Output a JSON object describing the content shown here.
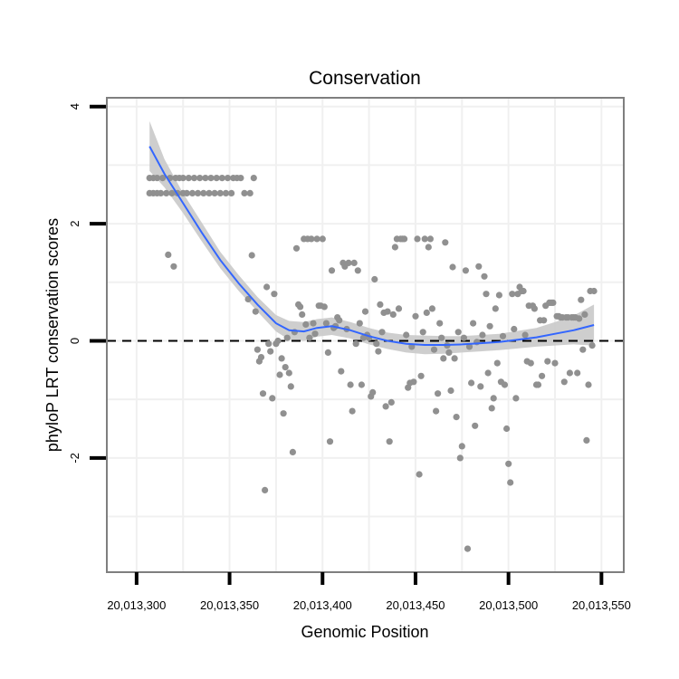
{
  "chart_data": {
    "type": "scatter",
    "title": "Conservation",
    "xlabel": "Genomic Position",
    "ylabel": "phyloP LRT conservation scores",
    "xlim": [
      20013284,
      20013562
    ],
    "ylim": [
      -3.95,
      4.15
    ],
    "xticks": [
      20013300,
      20013350,
      20013400,
      20013450,
      20013500,
      20013550
    ],
    "xtick_labels": [
      "20,013,300",
      "20,013,350",
      "20,013,400",
      "20,013,450",
      "20,013,500",
      "20,013,550"
    ],
    "yticks": [
      -2,
      0,
      2,
      4
    ],
    "ytick_labels": [
      "-2",
      "0",
      "2",
      "4"
    ],
    "grid": true,
    "reference_line": {
      "y": 0,
      "style": "dashed"
    },
    "colors": {
      "points": "#909090",
      "smooth": "#3366ff",
      "ribbon": "#c9c9c9",
      "panel_border": "#7f7f7f",
      "grid": "#f0f0f0",
      "axis": "#000000"
    },
    "points": [
      {
        "x": 20013307,
        "y": 2.78
      },
      {
        "x": 20013307,
        "y": 2.52
      },
      {
        "x": 20013309,
        "y": 2.78
      },
      {
        "x": 20013309,
        "y": 2.52
      },
      {
        "x": 20013311,
        "y": 2.78
      },
      {
        "x": 20013311,
        "y": 2.52
      },
      {
        "x": 20013313,
        "y": 2.52
      },
      {
        "x": 20013314,
        "y": 2.78
      },
      {
        "x": 20013316,
        "y": 2.52
      },
      {
        "x": 20013317,
        "y": 1.47
      },
      {
        "x": 20013318,
        "y": 2.78
      },
      {
        "x": 20013319,
        "y": 2.52
      },
      {
        "x": 20013320,
        "y": 1.27
      },
      {
        "x": 20013321,
        "y": 2.78
      },
      {
        "x": 20013322,
        "y": 2.52
      },
      {
        "x": 20013323,
        "y": 2.78
      },
      {
        "x": 20013325,
        "y": 2.78
      },
      {
        "x": 20013325,
        "y": 2.52
      },
      {
        "x": 20013327,
        "y": 2.52
      },
      {
        "x": 20013328,
        "y": 2.78
      },
      {
        "x": 20013330,
        "y": 2.52
      },
      {
        "x": 20013331,
        "y": 2.78
      },
      {
        "x": 20013333,
        "y": 2.52
      },
      {
        "x": 20013334,
        "y": 2.78
      },
      {
        "x": 20013336,
        "y": 2.52
      },
      {
        "x": 20013337,
        "y": 2.78
      },
      {
        "x": 20013339,
        "y": 2.52
      },
      {
        "x": 20013340,
        "y": 2.78
      },
      {
        "x": 20013342,
        "y": 2.52
      },
      {
        "x": 20013343,
        "y": 2.78
      },
      {
        "x": 20013345,
        "y": 2.52
      },
      {
        "x": 20013346,
        "y": 2.78
      },
      {
        "x": 20013348,
        "y": 2.52
      },
      {
        "x": 20013349,
        "y": 2.78
      },
      {
        "x": 20013351,
        "y": 2.52
      },
      {
        "x": 20013352,
        "y": 2.78
      },
      {
        "x": 20013354,
        "y": 2.78
      },
      {
        "x": 20013356,
        "y": 2.78
      },
      {
        "x": 20013358,
        "y": 2.52
      },
      {
        "x": 20013360,
        "y": 0.71
      },
      {
        "x": 20013361,
        "y": 2.52
      },
      {
        "x": 20013362,
        "y": 1.46
      },
      {
        "x": 20013363,
        "y": 2.78
      },
      {
        "x": 20013364,
        "y": 0.5
      },
      {
        "x": 20013365,
        "y": -0.15
      },
      {
        "x": 20013366,
        "y": -0.35
      },
      {
        "x": 20013367,
        "y": -0.28
      },
      {
        "x": 20013368,
        "y": -0.9
      },
      {
        "x": 20013369,
        "y": -2.55
      },
      {
        "x": 20013370,
        "y": 0.92
      },
      {
        "x": 20013371,
        "y": -0.05
      },
      {
        "x": 20013372,
        "y": -0.18
      },
      {
        "x": 20013373,
        "y": -0.98
      },
      {
        "x": 20013374,
        "y": 0.8
      },
      {
        "x": 20013375,
        "y": -0.05
      },
      {
        "x": 20013376,
        "y": 0.0
      },
      {
        "x": 20013377,
        "y": -0.58
      },
      {
        "x": 20013378,
        "y": -0.3
      },
      {
        "x": 20013379,
        "y": -1.24
      },
      {
        "x": 20013380,
        "y": -0.45
      },
      {
        "x": 20013381,
        "y": 0.05
      },
      {
        "x": 20013382,
        "y": -0.55
      },
      {
        "x": 20013383,
        "y": -0.78
      },
      {
        "x": 20013384,
        "y": -1.9
      },
      {
        "x": 20013385,
        "y": 0.15
      },
      {
        "x": 20013386,
        "y": 1.58
      },
      {
        "x": 20013387,
        "y": 0.62
      },
      {
        "x": 20013388,
        "y": 0.58
      },
      {
        "x": 20013389,
        "y": 0.45
      },
      {
        "x": 20013390,
        "y": 1.74
      },
      {
        "x": 20013391,
        "y": 0.28
      },
      {
        "x": 20013392,
        "y": 1.74
      },
      {
        "x": 20013393,
        "y": 0.05
      },
      {
        "x": 20013394,
        "y": 1.74
      },
      {
        "x": 20013395,
        "y": 0.3
      },
      {
        "x": 20013396,
        "y": 0.12
      },
      {
        "x": 20013397,
        "y": 1.74
      },
      {
        "x": 20013398,
        "y": 0.6
      },
      {
        "x": 20013399,
        "y": 0.6
      },
      {
        "x": 20013400,
        "y": 1.74
      },
      {
        "x": 20013401,
        "y": 0.58
      },
      {
        "x": 20013402,
        "y": 0.3
      },
      {
        "x": 20013403,
        "y": -0.2
      },
      {
        "x": 20013404,
        "y": -1.72
      },
      {
        "x": 20013405,
        "y": 1.2
      },
      {
        "x": 20013406,
        "y": 0.22
      },
      {
        "x": 20013407,
        "y": 0.25
      },
      {
        "x": 20013408,
        "y": 0.4
      },
      {
        "x": 20013409,
        "y": 0.35
      },
      {
        "x": 20013410,
        "y": -0.52
      },
      {
        "x": 20013411,
        "y": 1.33
      },
      {
        "x": 20013412,
        "y": 1.27
      },
      {
        "x": 20013413,
        "y": 0.2
      },
      {
        "x": 20013414,
        "y": 1.33
      },
      {
        "x": 20013415,
        "y": -0.75
      },
      {
        "x": 20013416,
        "y": -1.2
      },
      {
        "x": 20013417,
        "y": 1.33
      },
      {
        "x": 20013418,
        "y": -0.05
      },
      {
        "x": 20013419,
        "y": 1.2
      },
      {
        "x": 20013420,
        "y": 0.3
      },
      {
        "x": 20013421,
        "y": -0.75
      },
      {
        "x": 20013422,
        "y": 0.05
      },
      {
        "x": 20013423,
        "y": 0.5
      },
      {
        "x": 20013424,
        "y": 0.1
      },
      {
        "x": 20013425,
        "y": 0.05
      },
      {
        "x": 20013426,
        "y": -0.95
      },
      {
        "x": 20013427,
        "y": -0.88
      },
      {
        "x": 20013428,
        "y": 1.05
      },
      {
        "x": 20013429,
        "y": -0.05
      },
      {
        "x": 20013430,
        "y": -0.18
      },
      {
        "x": 20013431,
        "y": 0.62
      },
      {
        "x": 20013432,
        "y": 0.15
      },
      {
        "x": 20013433,
        "y": 0.48
      },
      {
        "x": 20013434,
        "y": -1.12
      },
      {
        "x": 20013435,
        "y": 0.5
      },
      {
        "x": 20013436,
        "y": -1.72
      },
      {
        "x": 20013437,
        "y": -1.05
      },
      {
        "x": 20013438,
        "y": 0.45
      },
      {
        "x": 20013439,
        "y": 1.6
      },
      {
        "x": 20013440,
        "y": 1.74
      },
      {
        "x": 20013441,
        "y": 0.55
      },
      {
        "x": 20013442,
        "y": 1.74
      },
      {
        "x": 20013443,
        "y": 1.74
      },
      {
        "x": 20013444,
        "y": 1.74
      },
      {
        "x": 20013445,
        "y": 0.1
      },
      {
        "x": 20013446,
        "y": -0.8
      },
      {
        "x": 20013447,
        "y": -0.72
      },
      {
        "x": 20013448,
        "y": -0.1
      },
      {
        "x": 20013449,
        "y": -0.7
      },
      {
        "x": 20013450,
        "y": 0.42
      },
      {
        "x": 20013451,
        "y": 1.74
      },
      {
        "x": 20013452,
        "y": -2.28
      },
      {
        "x": 20013453,
        "y": -0.6
      },
      {
        "x": 20013454,
        "y": 0.15
      },
      {
        "x": 20013455,
        "y": 1.74
      },
      {
        "x": 20013456,
        "y": 0.48
      },
      {
        "x": 20013457,
        "y": 1.6
      },
      {
        "x": 20013458,
        "y": 1.74
      },
      {
        "x": 20013459,
        "y": 0.55
      },
      {
        "x": 20013460,
        "y": -0.15
      },
      {
        "x": 20013461,
        "y": -1.2
      },
      {
        "x": 20013462,
        "y": -0.9
      },
      {
        "x": 20013463,
        "y": 0.3
      },
      {
        "x": 20013464,
        "y": 0.05
      },
      {
        "x": 20013465,
        "y": -0.3
      },
      {
        "x": 20013466,
        "y": 1.68
      },
      {
        "x": 20013467,
        "y": -0.08
      },
      {
        "x": 20013468,
        "y": -0.2
      },
      {
        "x": 20013469,
        "y": -0.85
      },
      {
        "x": 20013470,
        "y": 1.26
      },
      {
        "x": 20013471,
        "y": -0.3
      },
      {
        "x": 20013472,
        "y": -1.3
      },
      {
        "x": 20013473,
        "y": 0.15
      },
      {
        "x": 20013474,
        "y": -2.0
      },
      {
        "x": 20013475,
        "y": -1.8
      },
      {
        "x": 20013476,
        "y": 0.05
      },
      {
        "x": 20013477,
        "y": 1.2
      },
      {
        "x": 20013478,
        "y": -3.55
      },
      {
        "x": 20013479,
        "y": -0.1
      },
      {
        "x": 20013480,
        "y": -0.72
      },
      {
        "x": 20013481,
        "y": 0.3
      },
      {
        "x": 20013482,
        "y": -1.45
      },
      {
        "x": 20013483,
        "y": -0.02
      },
      {
        "x": 20013484,
        "y": 1.27
      },
      {
        "x": 20013485,
        "y": -0.78
      },
      {
        "x": 20013486,
        "y": 0.1
      },
      {
        "x": 20013487,
        "y": 1.1
      },
      {
        "x": 20013488,
        "y": 0.8
      },
      {
        "x": 20013489,
        "y": -0.55
      },
      {
        "x": 20013490,
        "y": 0.25
      },
      {
        "x": 20013491,
        "y": -1.15
      },
      {
        "x": 20013492,
        "y": -0.98
      },
      {
        "x": 20013493,
        "y": 0.55
      },
      {
        "x": 20013494,
        "y": -0.38
      },
      {
        "x": 20013495,
        "y": 0.78
      },
      {
        "x": 20013496,
        "y": -0.7
      },
      {
        "x": 20013497,
        "y": 0.08
      },
      {
        "x": 20013498,
        "y": -0.75
      },
      {
        "x": 20013499,
        "y": -1.5
      },
      {
        "x": 20013500,
        "y": -2.1
      },
      {
        "x": 20013501,
        "y": -2.42
      },
      {
        "x": 20013502,
        "y": 0.8
      },
      {
        "x": 20013503,
        "y": 0.2
      },
      {
        "x": 20013504,
        "y": -0.98
      },
      {
        "x": 20013505,
        "y": 0.8
      },
      {
        "x": 20013506,
        "y": 0.92
      },
      {
        "x": 20013507,
        "y": 0.85
      },
      {
        "x": 20013508,
        "y": 0.85
      },
      {
        "x": 20013509,
        "y": 0.1
      },
      {
        "x": 20013510,
        "y": -0.35
      },
      {
        "x": 20013511,
        "y": 0.6
      },
      {
        "x": 20013512,
        "y": -0.38
      },
      {
        "x": 20013513,
        "y": 0.6
      },
      {
        "x": 20013514,
        "y": 0.55
      },
      {
        "x": 20013515,
        "y": -0.75
      },
      {
        "x": 20013516,
        "y": -0.75
      },
      {
        "x": 20013517,
        "y": 0.35
      },
      {
        "x": 20013518,
        "y": -0.6
      },
      {
        "x": 20013519,
        "y": 0.35
      },
      {
        "x": 20013520,
        "y": 0.6
      },
      {
        "x": 20013521,
        "y": -0.35
      },
      {
        "x": 20013522,
        "y": 0.65
      },
      {
        "x": 20013523,
        "y": 0.65
      },
      {
        "x": 20013524,
        "y": 0.65
      },
      {
        "x": 20013525,
        "y": -0.38
      },
      {
        "x": 20013526,
        "y": 0.42
      },
      {
        "x": 20013527,
        "y": 0.42
      },
      {
        "x": 20013528,
        "y": 0.4
      },
      {
        "x": 20013529,
        "y": 0.4
      },
      {
        "x": 20013530,
        "y": -0.7
      },
      {
        "x": 20013531,
        "y": 0.4
      },
      {
        "x": 20013532,
        "y": 0.4
      },
      {
        "x": 20013533,
        "y": -0.55
      },
      {
        "x": 20013534,
        "y": 0.4
      },
      {
        "x": 20013535,
        "y": 0.4
      },
      {
        "x": 20013536,
        "y": 0.4
      },
      {
        "x": 20013537,
        "y": -0.55
      },
      {
        "x": 20013538,
        "y": 0.38
      },
      {
        "x": 20013539,
        "y": 0.7
      },
      {
        "x": 20013540,
        "y": -0.15
      },
      {
        "x": 20013541,
        "y": 0.45
      },
      {
        "x": 20013542,
        "y": -1.7
      },
      {
        "x": 20013543,
        "y": -0.75
      },
      {
        "x": 20013544,
        "y": 0.85
      },
      {
        "x": 20013545,
        "y": -0.08
      },
      {
        "x": 20013546,
        "y": 0.85
      }
    ],
    "smooth": [
      {
        "x": 20013307,
        "y": 3.32,
        "lo": 2.9,
        "hi": 3.75
      },
      {
        "x": 20013315,
        "y": 2.85,
        "lo": 2.62,
        "hi": 3.1
      },
      {
        "x": 20013325,
        "y": 2.35,
        "lo": 2.18,
        "hi": 2.52
      },
      {
        "x": 20013335,
        "y": 1.85,
        "lo": 1.7,
        "hi": 2.02
      },
      {
        "x": 20013345,
        "y": 1.38,
        "lo": 1.24,
        "hi": 1.52
      },
      {
        "x": 20013355,
        "y": 0.98,
        "lo": 0.85,
        "hi": 1.12
      },
      {
        "x": 20013365,
        "y": 0.62,
        "lo": 0.5,
        "hi": 0.75
      },
      {
        "x": 20013375,
        "y": 0.3,
        "lo": 0.16,
        "hi": 0.44
      },
      {
        "x": 20013382,
        "y": 0.18,
        "lo": 0.02,
        "hi": 0.34
      },
      {
        "x": 20013390,
        "y": 0.16,
        "lo": 0.0,
        "hi": 0.32
      },
      {
        "x": 20013397,
        "y": 0.22,
        "lo": 0.07,
        "hi": 0.37
      },
      {
        "x": 20013405,
        "y": 0.25,
        "lo": 0.1,
        "hi": 0.4
      },
      {
        "x": 20013415,
        "y": 0.18,
        "lo": 0.04,
        "hi": 0.32
      },
      {
        "x": 20013425,
        "y": 0.08,
        "lo": -0.06,
        "hi": 0.22
      },
      {
        "x": 20013435,
        "y": 0.0,
        "lo": -0.14,
        "hi": 0.14
      },
      {
        "x": 20013445,
        "y": -0.05,
        "lo": -0.2,
        "hi": 0.1
      },
      {
        "x": 20013455,
        "y": -0.07,
        "lo": -0.23,
        "hi": 0.09
      },
      {
        "x": 20013465,
        "y": -0.07,
        "lo": -0.22,
        "hi": 0.08
      },
      {
        "x": 20013475,
        "y": -0.06,
        "lo": -0.2,
        "hi": 0.08
      },
      {
        "x": 20013485,
        "y": -0.04,
        "lo": -0.18,
        "hi": 0.1
      },
      {
        "x": 20013495,
        "y": -0.02,
        "lo": -0.16,
        "hi": 0.12
      },
      {
        "x": 20013505,
        "y": 0.02,
        "lo": -0.13,
        "hi": 0.17
      },
      {
        "x": 20013515,
        "y": 0.06,
        "lo": -0.1,
        "hi": 0.22
      },
      {
        "x": 20013525,
        "y": 0.12,
        "lo": -0.08,
        "hi": 0.32
      },
      {
        "x": 20013535,
        "y": 0.18,
        "lo": -0.06,
        "hi": 0.43
      },
      {
        "x": 20013546,
        "y": 0.27,
        "lo": -0.08,
        "hi": 0.62
      }
    ]
  }
}
